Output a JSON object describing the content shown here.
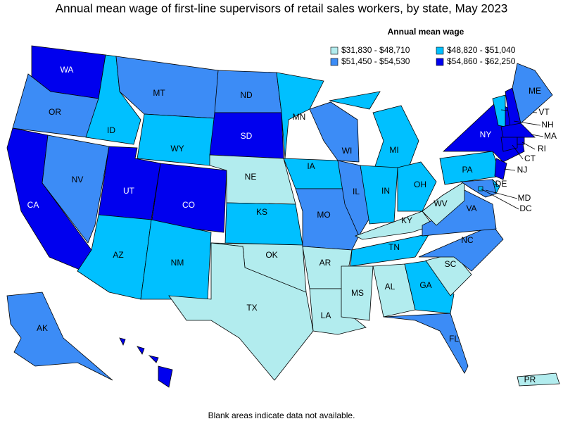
{
  "title": "Annual mean wage of first-line supervisors of retail sales workers, by state, May 2023",
  "legend_title": "Annual mean wage",
  "legend": [
    {
      "label": "$31,830 - $48,710",
      "color": "#b2ecee"
    },
    {
      "label": "$48,820 - $51,040",
      "color": "#00c0ff"
    },
    {
      "label": "$51,450 - $54,530",
      "color": "#3c8cf6"
    },
    {
      "label": "$54,860 - $62,250",
      "color": "#0000ee"
    }
  ],
  "states": [
    {
      "label": "WA",
      "color": "#0000ee"
    },
    {
      "label": "OR",
      "color": "#3c8cf6"
    },
    {
      "label": "CA",
      "color": "#0000ee"
    },
    {
      "label": "NV",
      "color": "#3c8cf6"
    },
    {
      "label": "ID",
      "color": "#00c0ff"
    },
    {
      "label": "MT",
      "color": "#3c8cf6"
    },
    {
      "label": "WY",
      "color": "#00c0ff"
    },
    {
      "label": "UT",
      "color": "#0000ee"
    },
    {
      "label": "CO",
      "color": "#0000ee"
    },
    {
      "label": "AZ",
      "color": "#00c0ff"
    },
    {
      "label": "NM",
      "color": "#00c0ff"
    },
    {
      "label": "ND",
      "color": "#3c8cf6"
    },
    {
      "label": "SD",
      "color": "#0000ee"
    },
    {
      "label": "NE",
      "color": "#b2ecee"
    },
    {
      "label": "KS",
      "color": "#00c0ff"
    },
    {
      "label": "OK",
      "color": "#b2ecee"
    },
    {
      "label": "TX",
      "color": "#b2ecee"
    },
    {
      "label": "MN",
      "color": "#00c0ff"
    },
    {
      "label": "IA",
      "color": "#00c0ff"
    },
    {
      "label": "MO",
      "color": "#3c8cf6"
    },
    {
      "label": "AR",
      "color": "#b2ecee"
    },
    {
      "label": "LA",
      "color": "#b2ecee"
    },
    {
      "label": "WI",
      "color": "#3c8cf6"
    },
    {
      "label": "IL",
      "color": "#3c8cf6"
    },
    {
      "label": "MI",
      "color": "#00c0ff"
    },
    {
      "label": "IN",
      "color": "#00c0ff"
    },
    {
      "label": "OH",
      "color": "#00c0ff"
    },
    {
      "label": "KY",
      "color": "#b2ecee"
    },
    {
      "label": "TN",
      "color": "#00c0ff"
    },
    {
      "label": "MS",
      "color": "#b2ecee"
    },
    {
      "label": "AL",
      "color": "#b2ecee"
    },
    {
      "label": "GA",
      "color": "#00c0ff"
    },
    {
      "label": "FL",
      "color": "#3c8cf6"
    },
    {
      "label": "SC",
      "color": "#b2ecee"
    },
    {
      "label": "NC",
      "color": "#3c8cf6"
    },
    {
      "label": "VA",
      "color": "#3c8cf6"
    },
    {
      "label": "WV",
      "color": "#b2ecee"
    },
    {
      "label": "PA",
      "color": "#00c0ff"
    },
    {
      "label": "NY",
      "color": "#0000ee"
    },
    {
      "label": "NJ",
      "color": "#0000ee"
    },
    {
      "label": "DE",
      "color": "#00c0ff"
    },
    {
      "label": "MD",
      "color": "#3c8cf6"
    },
    {
      "label": "DC",
      "color": "#00c0ff"
    },
    {
      "label": "VT",
      "color": "#00c0ff"
    },
    {
      "label": "NH",
      "color": "#0000ee"
    },
    {
      "label": "ME",
      "color": "#3c8cf6"
    },
    {
      "label": "MA",
      "color": "#0000ee"
    },
    {
      "label": "CT",
      "color": "#0000ee"
    },
    {
      "label": "RI",
      "color": "#0000ee"
    },
    {
      "label": "AK",
      "color": "#3c8cf6"
    },
    {
      "label": "HI",
      "color": "#0000ee"
    },
    {
      "label": "PR",
      "color": "#b2ecee"
    }
  ],
  "note": "Blank areas indicate data not available."
}
